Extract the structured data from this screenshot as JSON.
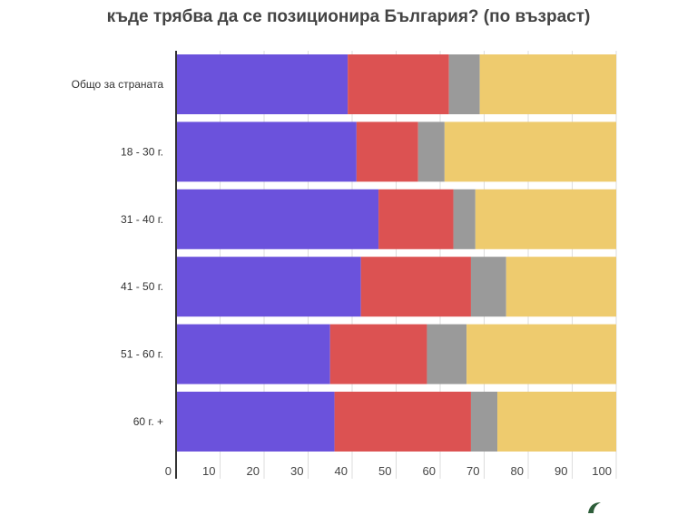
{
  "chart_data": {
    "type": "bar",
    "orientation": "horizontal",
    "stacked": true,
    "title": "къде трябва да се позиционира България? (по възраст)",
    "categories": [
      "Общо за страната",
      "18 - 30 г.",
      "31 - 40 г.",
      "41 - 50 г.",
      "51 - 60 г.",
      "60 г. +"
    ],
    "series": [
      {
        "color": "#6b52dc",
        "values": [
          39,
          41,
          46,
          42,
          35,
          36
        ]
      },
      {
        "color": "#dc5252",
        "values": [
          23,
          14,
          17,
          25,
          22,
          31
        ]
      },
      {
        "color": "#9a9a9a",
        "values": [
          7,
          6,
          5,
          8,
          9,
          6
        ]
      },
      {
        "color": "#eecb6e",
        "values": [
          31,
          39,
          32,
          25,
          34,
          27
        ]
      }
    ],
    "xlim": [
      0,
      100
    ],
    "xticks": [
      "0",
      "10",
      "20",
      "30",
      "40",
      "50",
      "60",
      "70",
      "80",
      "90",
      "100"
    ],
    "grid": true
  }
}
